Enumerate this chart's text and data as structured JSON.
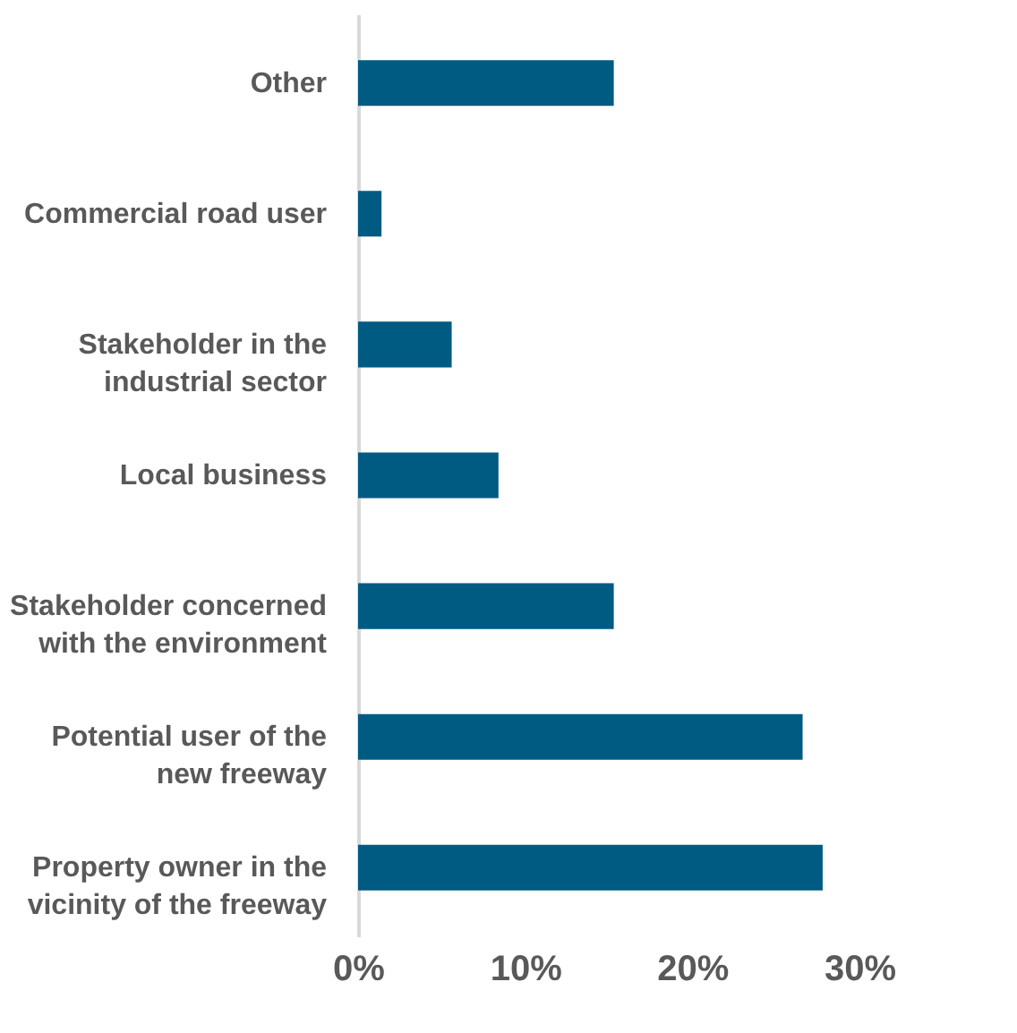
{
  "chart_data": {
    "type": "bar",
    "orientation": "horizontal",
    "categories": [
      "Other",
      "Commercial road user",
      "Stakeholder in the industrial sector",
      "Local business",
      "Stakeholder concerned with the environment",
      "Potential user of the new freeway",
      "Property owner in the vicinity of the freeway"
    ],
    "values": [
      15.3,
      1.4,
      5.6,
      8.4,
      15.3,
      26.6,
      27.8
    ],
    "color": "#005b82",
    "xlim": [
      0,
      30
    ],
    "xticks": [
      {
        "value": 0,
        "label": "0%"
      },
      {
        "value": 10,
        "label": "10%"
      },
      {
        "value": 20,
        "label": "20%"
      },
      {
        "value": 30,
        "label": "30%"
      }
    ],
    "grid": false
  }
}
